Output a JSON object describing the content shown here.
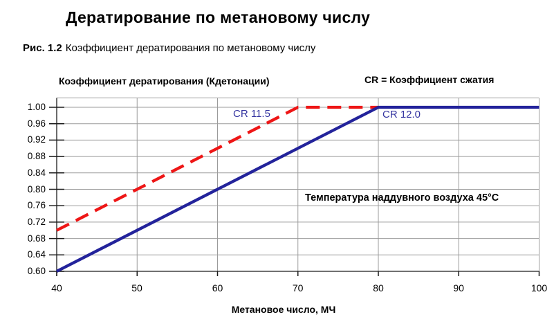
{
  "page": {
    "title": "Дератирование по метановому числу",
    "caption_label": "Рис. 1.2",
    "caption_text": "Коэффициент дератирования по метановому числу"
  },
  "chart_data": {
    "type": "line",
    "y_axis_title": "Коэффициент дератирования (Кдетонации)",
    "legend_note": "CR = Коэффициент сжатия",
    "annotation": "Температура наддувного воздуха 45°C",
    "xlabel": "Метановое число, МЧ",
    "xlim": [
      40,
      100
    ],
    "ylim": [
      0.6,
      1.02
    ],
    "grid": true,
    "xticks": [
      40,
      50,
      60,
      70,
      80,
      90,
      100
    ],
    "yticks": [
      "1.00",
      "0.96",
      "0.92",
      "0.88",
      "0.84",
      "0.80",
      "0.76",
      "0.72",
      "0.68",
      "0.64",
      "0.60"
    ],
    "series": [
      {
        "name": "CR 11.5",
        "style": "dashed",
        "color": "#ee1616",
        "x": [
          40,
          70,
          80
        ],
        "y": [
          0.7,
          1.0,
          1.0
        ]
      },
      {
        "name": "CR 12.0",
        "style": "solid",
        "color": "#23239b",
        "x": [
          40,
          80,
          100
        ],
        "y": [
          0.6,
          1.0,
          1.0
        ]
      }
    ],
    "series_label_color": "#3434a0",
    "gridline_color": "#9b9b9b",
    "axis_color": "#1a1a1a"
  }
}
